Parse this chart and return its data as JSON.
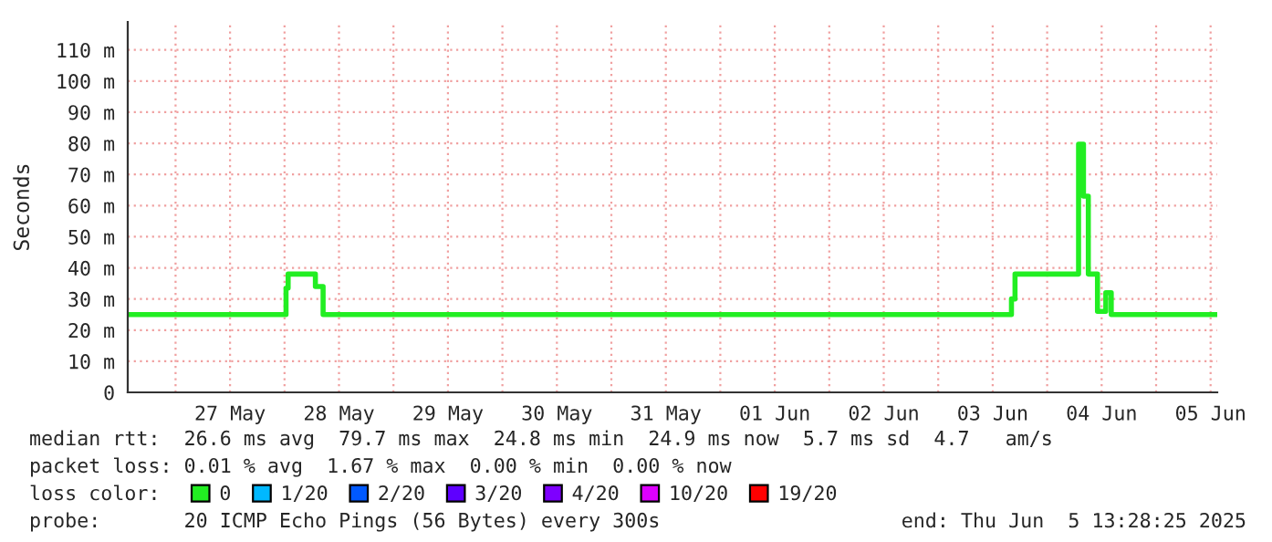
{
  "chart_data": {
    "type": "step",
    "ylabel": "Seconds",
    "x": [
      "2025-05-26T13:28",
      "2025-05-28T00:20",
      "2025-05-28T00:48",
      "2025-05-28T06:48",
      "2025-05-28T08:30",
      "2025-06-03T16:08",
      "2025-06-03T16:55",
      "2025-06-04T06:55",
      "2025-06-04T08:00",
      "2025-06-04T09:04",
      "2025-06-04T11:05",
      "2025-06-04T12:55",
      "2025-06-04T14:07",
      "2025-06-05T13:28"
    ],
    "series": [
      {
        "name": "0",
        "color": "#22ee22",
        "values": [
          25,
          33.5,
          38,
          34,
          25,
          30,
          38,
          79.7,
          63,
          38,
          26,
          32,
          25,
          25
        ]
      },
      {
        "name": "1/20",
        "color": "#00b8ff",
        "values": [
          null,
          null,
          null,
          null,
          null,
          null,
          null,
          null,
          null,
          null,
          null,
          null,
          null,
          null
        ]
      },
      {
        "name": "2/20",
        "color": "#0059ff",
        "values": [
          null,
          null,
          null,
          null,
          null,
          null,
          null,
          null,
          null,
          null,
          null,
          null,
          null,
          null
        ]
      },
      {
        "name": "3/20",
        "color": "#5e00ff",
        "values": [
          null,
          null,
          null,
          null,
          null,
          null,
          null,
          null,
          null,
          null,
          null,
          null,
          null,
          null
        ]
      },
      {
        "name": "4/20",
        "color": "#7e00ff",
        "values": [
          null,
          null,
          null,
          null,
          null,
          null,
          null,
          null,
          null,
          null,
          null,
          null,
          null,
          null
        ]
      },
      {
        "name": "10/20",
        "color": "#dd00ff",
        "values": [
          null,
          null,
          null,
          null,
          null,
          null,
          null,
          null,
          null,
          null,
          null,
          null,
          null,
          null
        ]
      },
      {
        "name": "19/20",
        "color": "#ff0000",
        "values": [
          null,
          null,
          null,
          null,
          null,
          null,
          null,
          null,
          null,
          null,
          null,
          null,
          null,
          null
        ]
      }
    ],
    "legend_title": "loss color:",
    "legend": "bottom",
    "xlim": [
      "2025-05-26T13:28",
      "2025-06-05T13:28"
    ],
    "xticks": [
      {
        "value": "2025-05-27",
        "label": null
      },
      {
        "value": "2025-05-27T12:00",
        "label": "27 May"
      },
      {
        "value": "2025-05-28",
        "label": null
      },
      {
        "value": "2025-05-28T12:00",
        "label": "28 May"
      },
      {
        "value": "2025-05-29",
        "label": null
      },
      {
        "value": "2025-05-29T12:00",
        "label": "29 May"
      },
      {
        "value": "2025-05-30",
        "label": null
      },
      {
        "value": "2025-05-30T12:00",
        "label": "30 May"
      },
      {
        "value": "2025-05-31",
        "label": null
      },
      {
        "value": "2025-05-31T12:00",
        "label": "31 May"
      },
      {
        "value": "2025-06-01",
        "label": null
      },
      {
        "value": "2025-06-01T12:00",
        "label": "01 Jun"
      },
      {
        "value": "2025-06-02",
        "label": null
      },
      {
        "value": "2025-06-02T12:00",
        "label": "02 Jun"
      },
      {
        "value": "2025-06-03",
        "label": null
      },
      {
        "value": "2025-06-03T12:00",
        "label": "03 Jun"
      },
      {
        "value": "2025-06-04",
        "label": null
      },
      {
        "value": "2025-06-04T12:00",
        "label": "04 Jun"
      },
      {
        "value": "2025-06-05",
        "label": null
      },
      {
        "value": "2025-06-05T12:00",
        "label": "05 Jun"
      }
    ],
    "ylim": [
      0,
      119
    ],
    "yticks": [
      0,
      {
        "value": 10,
        "label": "10 m"
      },
      {
        "value": 20,
        "label": "20 m"
      },
      {
        "value": 30,
        "label": "30 m"
      },
      {
        "value": 40,
        "label": "40 m"
      },
      {
        "value": 50,
        "label": "50 m"
      },
      {
        "value": 60,
        "label": "60 m"
      },
      {
        "value": 70,
        "label": "70 m"
      },
      {
        "value": 80,
        "label": "80 m"
      },
      {
        "value": 90,
        "label": "90 m"
      },
      {
        "value": 100,
        "label": "100 m"
      },
      {
        "value": 110,
        "label": "110 m"
      }
    ],
    "grid": true,
    "annotations": [
      "median rtt:  26.6 ms avg  79.7 ms max  24.8 ms min  24.9 ms now  5.7 ms sd  4.7   am/s",
      "packet loss: 0.01 % avg  1.67 % max  0.00 % min  0.00 % now",
      "probe:       20 ICMP Echo Pings (56 Bytes) every 300s",
      "end: Thu Jun  5 13:28:25 2025"
    ]
  }
}
